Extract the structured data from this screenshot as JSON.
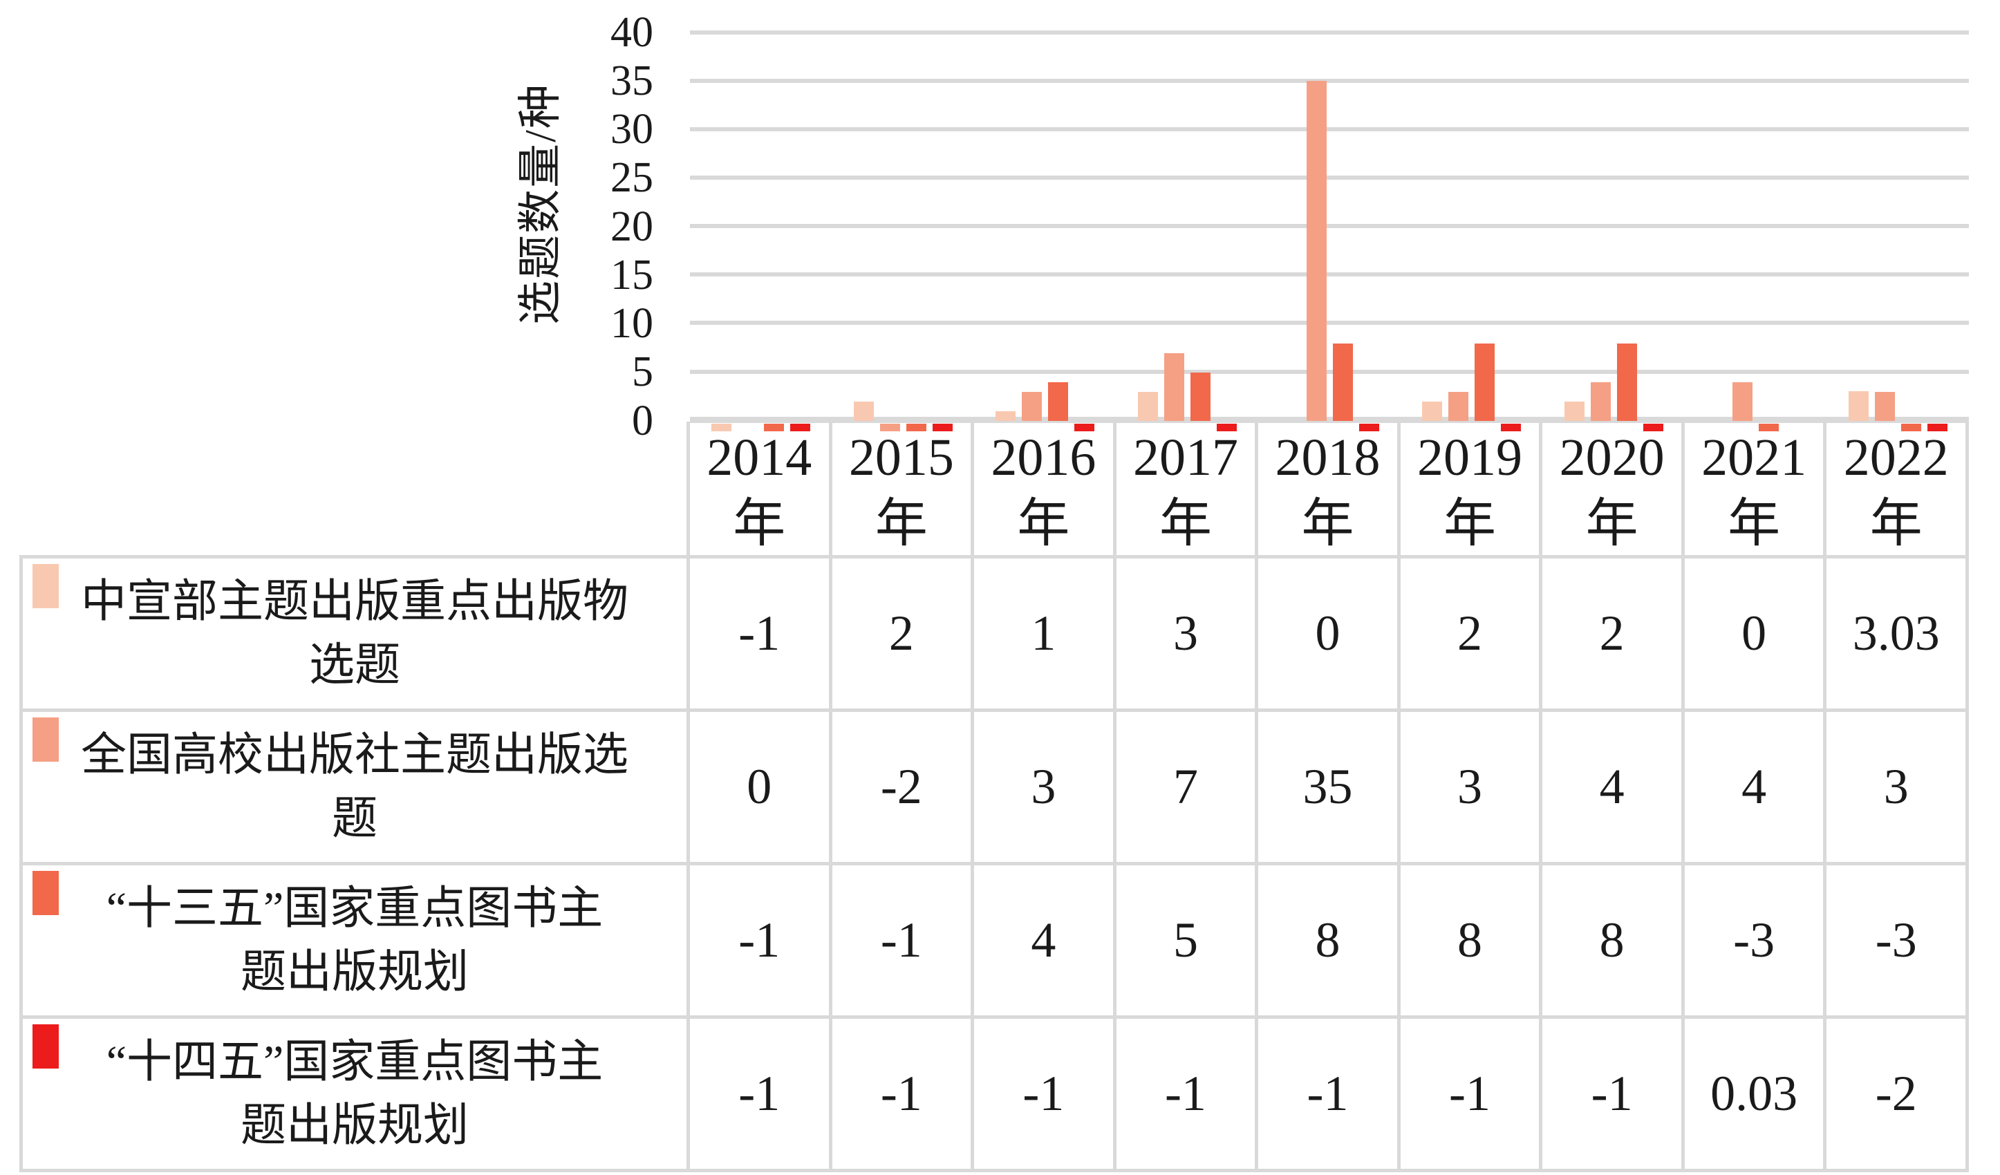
{
  "y_axis": {
    "title": "选题数量/种",
    "ticks": [
      "40",
      "35",
      "30",
      "25",
      "20",
      "15",
      "10",
      "5",
      "0"
    ]
  },
  "years": [
    {
      "num": "2014",
      "suffix": "年"
    },
    {
      "num": "2015",
      "suffix": "年"
    },
    {
      "num": "2016",
      "suffix": "年"
    },
    {
      "num": "2017",
      "suffix": "年"
    },
    {
      "num": "2018",
      "suffix": "年"
    },
    {
      "num": "2019",
      "suffix": "年"
    },
    {
      "num": "2020",
      "suffix": "年"
    },
    {
      "num": "2021",
      "suffix": "年"
    },
    {
      "num": "2022",
      "suffix": "年"
    }
  ],
  "chart_data": {
    "type": "bar",
    "title": "",
    "xlabel": "",
    "ylabel": "选题数量/种",
    "ylim": [
      0,
      40
    ],
    "ytick_step": 5,
    "grid": "horizontal",
    "legend_position": "left-table-below-chart",
    "categories": [
      "2014年",
      "2015年",
      "2016年",
      "2017年",
      "2018年",
      "2019年",
      "2020年",
      "2021年",
      "2022年"
    ],
    "series": [
      {
        "name": "中宣部主题出版重点出版物选题",
        "color": "#F8C9B0",
        "values": [
          -1,
          2,
          1,
          3,
          0,
          2,
          2,
          0,
          3.03
        ]
      },
      {
        "name": "全国高校出版社主题出版选题",
        "color": "#F5A084",
        "values": [
          0,
          -2,
          3,
          7,
          35,
          3,
          4,
          4,
          3
        ]
      },
      {
        "name": "“十三五”国家重点图书主题出版规划",
        "color": "#F2684B",
        "values": [
          -1,
          -1,
          4,
          5,
          8,
          8,
          8,
          -3,
          -3
        ]
      },
      {
        "name": "“十四五”国家重点图书主题出版规划",
        "color": "#EC1C1C",
        "values": [
          -1,
          -1,
          -1,
          -1,
          -1,
          -1,
          -1,
          0.03,
          -2
        ]
      }
    ],
    "note": "负值在横轴下方仅显示为被裁剪的小色条"
  },
  "table": {
    "rows": [
      {
        "label_lines": [
          "中宣部主题出版重点出版物",
          "选题"
        ],
        "values": [
          "-1",
          "2",
          "1",
          "3",
          "0",
          "2",
          "2",
          "0",
          "3.03"
        ]
      },
      {
        "label_lines": [
          "全国高校出版社主题出版选",
          "题"
        ],
        "values": [
          "0",
          "-2",
          "3",
          "7",
          "35",
          "3",
          "4",
          "4",
          "3"
        ]
      },
      {
        "label_lines": [
          "“十三五”国家重点图书主",
          "题出版规划"
        ],
        "values": [
          "-1",
          "-1",
          "4",
          "5",
          "8",
          "8",
          "8",
          "-3",
          "-3"
        ]
      },
      {
        "label_lines": [
          "“十四五”国家重点图书主",
          "题出版规划"
        ],
        "values": [
          "-1",
          "-1",
          "-1",
          "-1",
          "-1",
          "-1",
          "-1",
          "0.03",
          "-2"
        ]
      }
    ]
  }
}
